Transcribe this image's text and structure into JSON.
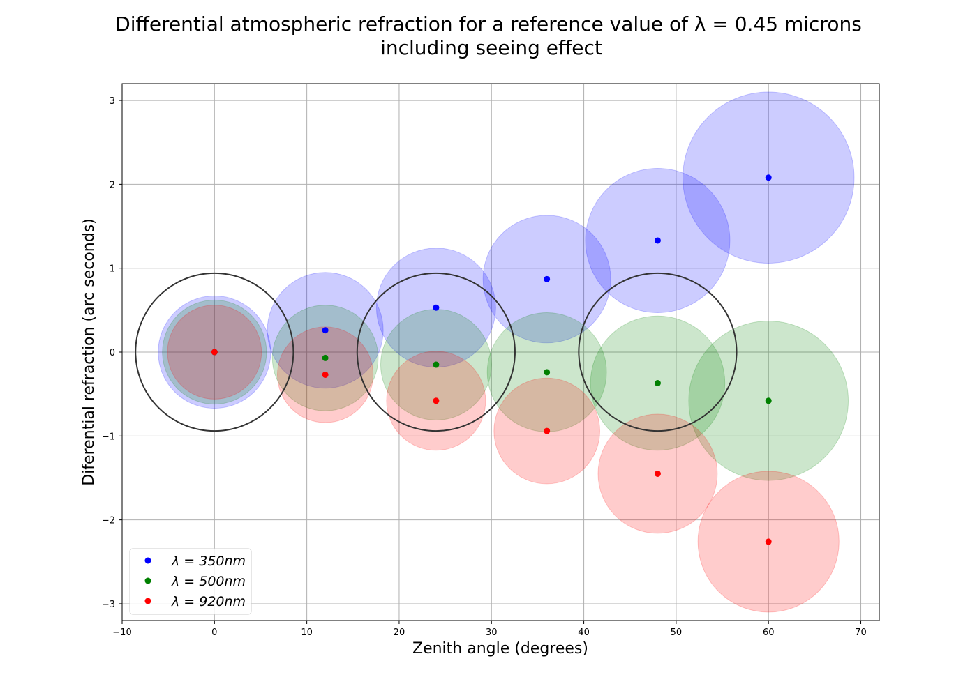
{
  "chart_data": {
    "type": "scatter",
    "title_line1": "Differential atmospheric refraction for a reference value of λ = 0.45 microns",
    "title_line2": "including seeing effect",
    "xlabel": "Zenith angle (degrees)",
    "ylabel": "Diferential refraction (arc seconds)",
    "xlim": [
      -10,
      72
    ],
    "ylim": [
      -3.2,
      3.2
    ],
    "xticks": [
      -10,
      0,
      10,
      20,
      30,
      40,
      50,
      60,
      70
    ],
    "yticks": [
      -3,
      -2,
      -1,
      0,
      1,
      2,
      3
    ],
    "grid": true,
    "legend_position": "lower-left",
    "series": [
      {
        "name": "λ = 350nm",
        "color": "#0000ff",
        "fill": "#0000ff",
        "x": [
          0,
          12,
          24,
          36,
          48,
          60
        ],
        "y": [
          0.0,
          0.26,
          0.53,
          0.87,
          1.33,
          2.08
        ],
        "seeing_radius": [
          0.67,
          0.69,
          0.71,
          0.76,
          0.86,
          1.02
        ]
      },
      {
        "name": "λ = 500nm",
        "color": "#008000",
        "fill": "#008000",
        "x": [
          0,
          12,
          24,
          36,
          48,
          60
        ],
        "y": [
          0.0,
          -0.07,
          -0.15,
          -0.24,
          -0.37,
          -0.58
        ],
        "seeing_radius": [
          0.62,
          0.63,
          0.66,
          0.71,
          0.8,
          0.95
        ]
      },
      {
        "name": "λ = 920nm",
        "color": "#ff0000",
        "fill": "#ff0000",
        "x": [
          0,
          12,
          24,
          36,
          48,
          60
        ],
        "y": [
          0.0,
          -0.27,
          -0.58,
          -0.94,
          -1.45,
          -2.26
        ],
        "seeing_radius": [
          0.56,
          0.57,
          0.59,
          0.63,
          0.71,
          0.84
        ]
      }
    ],
    "reference_circles": {
      "color": "#333333",
      "x": [
        0,
        24,
        48
      ],
      "y": [
        0,
        0,
        0
      ],
      "radius": 0.94
    }
  }
}
